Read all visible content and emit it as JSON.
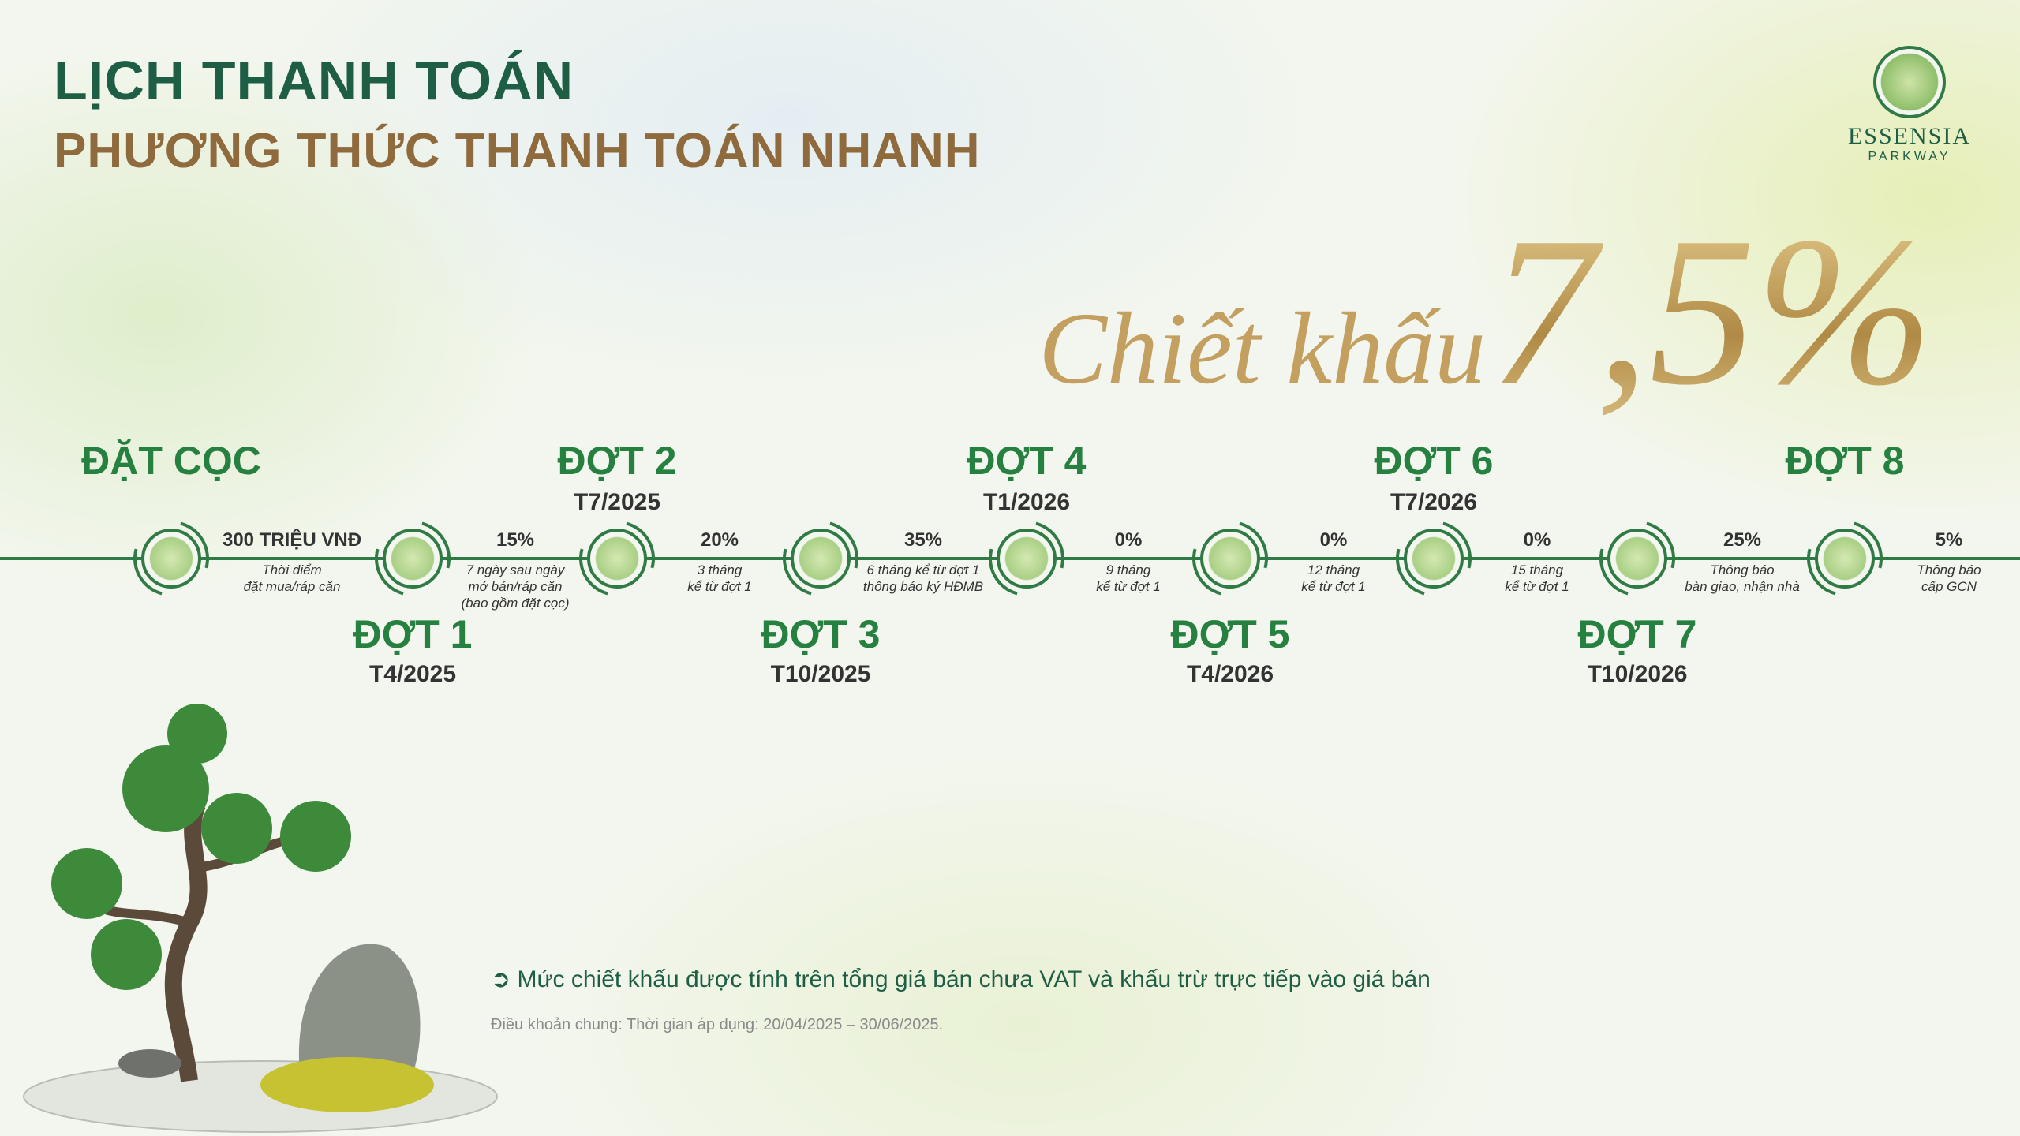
{
  "header": {
    "title": "LỊCH THANH TOÁN",
    "subtitle": "PHƯƠNG THỨC THANH TOÁN NHANH"
  },
  "logo": {
    "name": "ESSENSIA",
    "sub": "PARKWAY"
  },
  "promo": {
    "script": "Chiết khấu",
    "value": "7,5%"
  },
  "colors": {
    "green": "#268040",
    "dark_green": "#1e5e45",
    "gold": "#c4a060",
    "brown": "#8e6a3d"
  },
  "milestones": [
    {
      "label": "ĐẶT CỌC",
      "date": ""
    },
    {
      "label": "ĐỢT 1",
      "date": "T4/2025"
    },
    {
      "label": "ĐỢT 2",
      "date": "T7/2025"
    },
    {
      "label": "ĐỢT 3",
      "date": "T10/2025"
    },
    {
      "label": "ĐỢT 4",
      "date": "T1/2026"
    },
    {
      "label": "ĐỢT 5",
      "date": "T4/2026"
    },
    {
      "label": "ĐỢT 6",
      "date": "T7/2026"
    },
    {
      "label": "ĐỢT 7",
      "date": "T10/2026"
    },
    {
      "label": "ĐỢT 8",
      "date": ""
    }
  ],
  "segments": [
    {
      "amount": "300 TRIỆU VNĐ",
      "desc": "Thời điểm\nđặt mua/ráp căn"
    },
    {
      "amount": "15%",
      "desc": "7 ngày sau ngày\nmở bán/ráp căn\n(bao gồm đặt cọc)"
    },
    {
      "amount": "20%",
      "desc": "3 tháng\nkể từ đợt 1"
    },
    {
      "amount": "35%",
      "desc": "6 tháng kể từ đợt 1\nthông báo ký HĐMB"
    },
    {
      "amount": "0%",
      "desc": "9 tháng\nkể từ đợt 1"
    },
    {
      "amount": "0%",
      "desc": "12 tháng\nkể từ đợt 1"
    },
    {
      "amount": "0%",
      "desc": "15 tháng\nkể từ đợt 1"
    },
    {
      "amount": "25%",
      "desc": "Thông báo\nbàn giao, nhận nhà"
    },
    {
      "amount": "5%",
      "desc": "Thông báo\ncấp GCN"
    }
  ],
  "footer": {
    "note": "Mức chiết khấu được tính trên tổng giá bán chưa VAT và khấu trừ trực tiếp vào giá bán",
    "terms": "Điều khoản chung: Thời gian áp dụng: 20/04/2025 – 30/06/2025."
  }
}
